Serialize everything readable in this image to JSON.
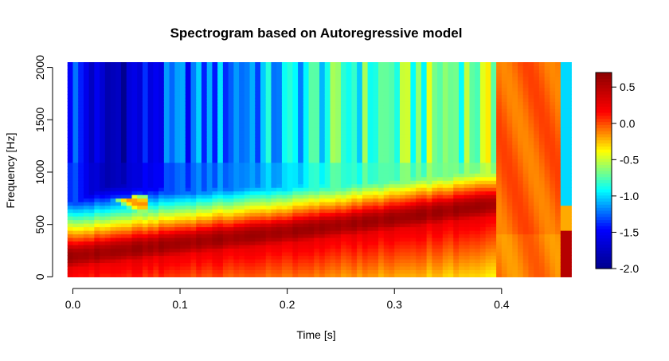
{
  "chart_data": {
    "type": "heatmap",
    "title": "Spectrogram based on Autoregressive model",
    "xlabel": "Time [s]",
    "ylabel": "Frequency [Hz]",
    "xlim": [
      -0.01,
      0.467
    ],
    "ylim": [
      -20,
      2050
    ],
    "x_ticks": [
      0.0,
      0.1,
      0.2,
      0.3,
      0.4
    ],
    "x_tick_labels": [
      "0.0",
      "0.1",
      "0.2",
      "0.3",
      "0.4"
    ],
    "y_ticks": [
      0,
      500,
      1000,
      1500,
      2000
    ],
    "y_tick_labels": [
      "0",
      "500",
      "1000",
      "1500",
      "2000"
    ],
    "colorbar": {
      "range": [
        -2.0,
        0.7
      ],
      "ticks": [
        0.5,
        0.0,
        -0.5,
        -1.0,
        -1.5,
        -2.0
      ],
      "tick_labels": [
        "0.5",
        "0.0",
        "-0.5",
        "-1.0",
        "-1.5",
        "-2.0"
      ],
      "colormap": [
        "#00008b",
        "#0000ff",
        "#00ffff",
        "#ffff00",
        "#ff0000",
        "#8b0000"
      ]
    },
    "grid": false,
    "time_range": [
      -0.005,
      0.465
    ],
    "frequency_range": [
      0,
      2050
    ],
    "ridge": {
      "description_free_values": true,
      "points": [
        {
          "t": 0.0,
          "f": 200
        },
        {
          "t": 0.1,
          "f": 320
        },
        {
          "t": 0.2,
          "f": 430
        },
        {
          "t": 0.3,
          "f": 560
        },
        {
          "t": 0.39,
          "f": 690
        }
      ]
    },
    "secondary_ridge": {
      "points": [
        {
          "t": -0.005,
          "f": 900
        },
        {
          "t": 0.03,
          "f": 880
        },
        {
          "t": 0.06,
          "f": 700
        }
      ]
    },
    "high_freq_floor": {
      "points": [
        {
          "t": 0.0,
          "v": -1.3
        },
        {
          "t": 0.03,
          "v": -1.85
        },
        {
          "t": 0.1,
          "v": -1.3
        },
        {
          "t": 0.2,
          "v": -1.05
        },
        {
          "t": 0.23,
          "v": -0.85
        },
        {
          "t": 0.3,
          "v": -0.75
        },
        {
          "t": 0.39,
          "v": -0.6
        }
      ]
    },
    "flat_segment": {
      "t_start": 0.397,
      "t_end": 0.455,
      "v": -0.05
    },
    "edge_segment": {
      "t_start": 0.455,
      "t_end": 0.465,
      "v_high": -1.0,
      "v_low": 0.5
    }
  }
}
